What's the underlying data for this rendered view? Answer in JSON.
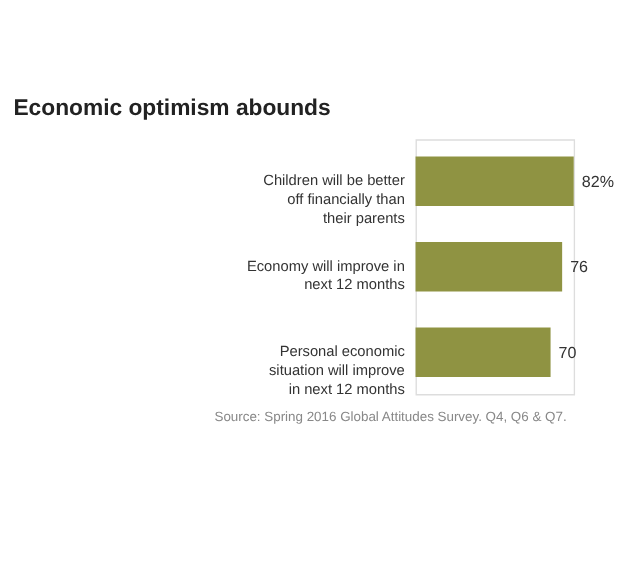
{
  "chart_data": {
    "type": "bar",
    "orientation": "horizontal",
    "title": "Economic optimism abounds",
    "categories": [
      "Children will be better off financially than their parents",
      "Economy will improve in next 12 months",
      "Personal economic situation will improve in next 12 months"
    ],
    "values": [
      82,
      76,
      70
    ],
    "value_labels": [
      "82%",
      "76",
      "70"
    ],
    "color": "#8f9342",
    "annotations": [
      "Source: Spring 2016 Global Attitudes Survey. Q4, Q6 & Q7."
    ]
  }
}
